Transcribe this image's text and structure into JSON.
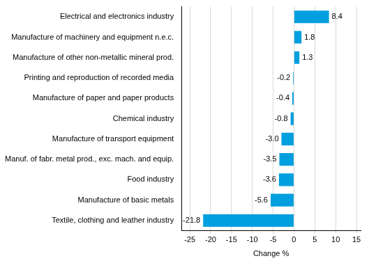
{
  "chart_data": {
    "type": "bar",
    "orientation": "horizontal",
    "x_label": "Change %",
    "categories": [
      "Electrical and electronics industry",
      "Manufacture of machinery and equipment n.e.c.",
      "Manufacture of other non-metallic mineral prod.",
      "Printing and reproduction of recorded media",
      "Manufacture of paper and paper products",
      "Chemical industry",
      "Manufacture of transport equipment",
      "Manuf. of fabr. metal prod., exc. mach. and equip.",
      "Food industry",
      "Manufacture of basic metals",
      "Textile, clothing and leather industry"
    ],
    "values": [
      8.4,
      1.8,
      1.3,
      -0.2,
      -0.4,
      -0.8,
      -3.0,
      -3.5,
      -3.6,
      -5.6,
      -21.8
    ],
    "value_labels": [
      "8.4",
      "1.8",
      "1.3",
      "-0.2",
      "-0.4",
      "-0.8",
      "-3.0",
      "-3.5",
      "-3.6",
      "-5.6",
      "-21.8"
    ],
    "color": "#009fdf",
    "xlim": [
      -27,
      16
    ],
    "xticks": [
      -25,
      -20,
      -15,
      -10,
      -5,
      0,
      5,
      10,
      15
    ],
    "grid": true,
    "data_labels": true
  }
}
